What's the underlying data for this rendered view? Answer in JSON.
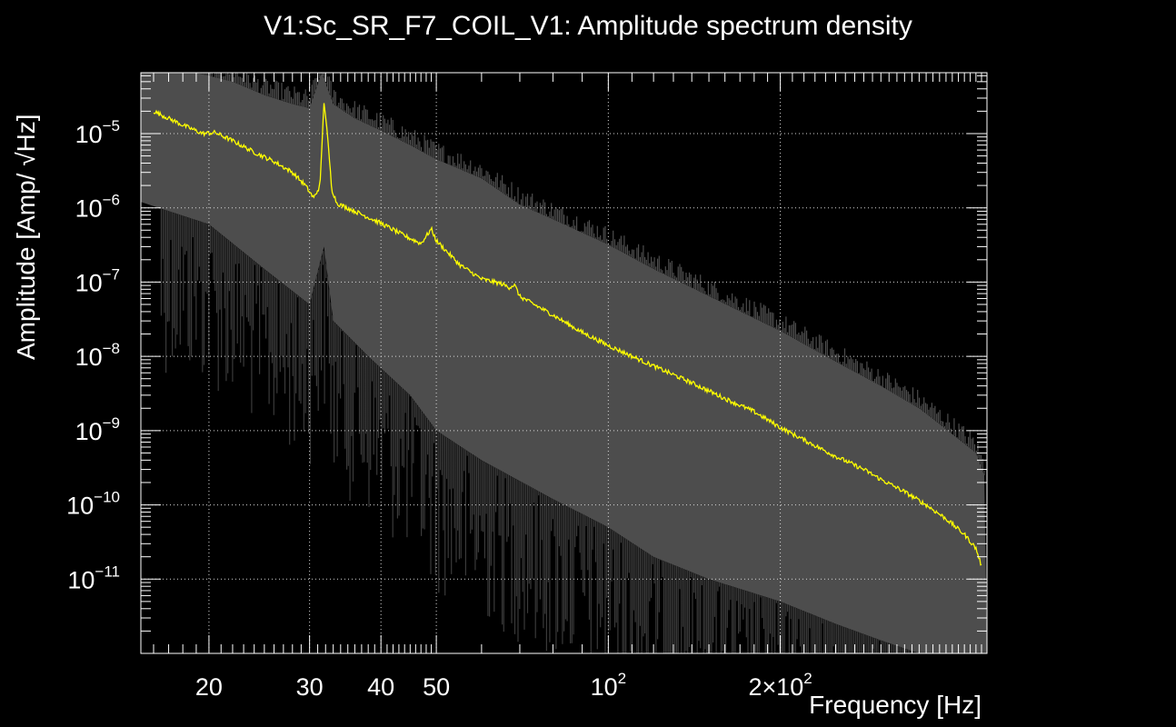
{
  "chart_data": {
    "type": "line",
    "title": "V1:Sc_SR_F7_COIL_V1: Amplitude spectrum density",
    "xlabel": "Frequency [Hz]",
    "ylabel": "Amplitude [Amp/ √Hz]",
    "ylabel_main": "Amplitude [Amp/ ",
    "ylabel_sqrt": "√",
    "ylabel_unit": "Hz]",
    "x_scale": "log",
    "y_scale": "log",
    "xlim": [
      15.2,
      460
    ],
    "ylim": [
      1e-12,
      6.6e-05
    ],
    "grid": true,
    "background": "#000000",
    "colors": {
      "band": "#4d4d4d",
      "band_low": "#3a3a3a",
      "median": "#ffff00",
      "axis": "#ffffff"
    },
    "x_ticks": [
      {
        "value": 20,
        "base": "20",
        "exp": ""
      },
      {
        "value": 30,
        "base": "30",
        "exp": ""
      },
      {
        "value": 40,
        "base": "40",
        "exp": ""
      },
      {
        "value": 50,
        "base": "50",
        "exp": ""
      },
      {
        "value": 100,
        "base": "10",
        "exp": "2"
      },
      {
        "value": 200,
        "base": "2×10",
        "exp": "2"
      }
    ],
    "y_ticks": [
      {
        "value": 1e-05,
        "base": "10",
        "exp": "−5"
      },
      {
        "value": 1e-06,
        "base": "10",
        "exp": "−6"
      },
      {
        "value": 1e-07,
        "base": "10",
        "exp": "−7"
      },
      {
        "value": 1e-08,
        "base": "10",
        "exp": "−8"
      },
      {
        "value": 1e-09,
        "base": "10",
        "exp": "−9"
      },
      {
        "value": 1e-10,
        "base": "10",
        "exp": "−10"
      },
      {
        "value": 1e-11,
        "base": "10",
        "exp": "−11"
      }
    ],
    "series": [
      {
        "kind": "band-upper",
        "points": [
          [
            15.2,
            6.6e-05
          ],
          [
            19,
            6.6e-05
          ],
          [
            22,
            5e-05
          ],
          [
            25,
            3.3e-05
          ],
          [
            28,
            2.5e-05
          ],
          [
            30,
            2.2e-05
          ],
          [
            31.5,
            6.6e-05
          ],
          [
            33,
            2.5e-05
          ],
          [
            36,
            1.6e-05
          ],
          [
            40,
            1.1e-05
          ],
          [
            45,
            7e-06
          ],
          [
            50,
            4.5e-06
          ],
          [
            60,
            2.5e-06
          ],
          [
            70,
            1.1e-06
          ],
          [
            80,
            7e-07
          ],
          [
            100,
            3.2e-07
          ],
          [
            120,
            1.5e-07
          ],
          [
            150,
            6.5e-08
          ],
          [
            200,
            2.2e-08
          ],
          [
            250,
            8.5e-09
          ],
          [
            300,
            4e-09
          ],
          [
            350,
            2e-09
          ],
          [
            400,
            9e-10
          ],
          [
            440,
            5e-10
          ],
          [
            455,
            2.5e-10
          ]
        ]
      },
      {
        "kind": "band-lower",
        "points": [
          [
            15.2,
            1.2e-06
          ],
          [
            20,
            6e-07
          ],
          [
            25,
            1.5e-07
          ],
          [
            30,
            5e-08
          ],
          [
            31.8,
            3e-07
          ],
          [
            33,
            3e-08
          ],
          [
            38,
            1e-08
          ],
          [
            45,
            3e-09
          ],
          [
            50,
            1e-09
          ],
          [
            60,
            4e-10
          ],
          [
            80,
            1.2e-10
          ],
          [
            100,
            5e-11
          ],
          [
            120,
            2e-11
          ],
          [
            150,
            1e-11
          ],
          [
            200,
            5e-12
          ],
          [
            250,
            2.5e-12
          ],
          [
            300,
            1.5e-12
          ],
          [
            350,
            1e-12
          ],
          [
            460,
            1e-12
          ]
        ]
      },
      {
        "kind": "median",
        "points": [
          [
            16,
            2e-05
          ],
          [
            18,
            1.3e-05
          ],
          [
            19.5,
            1e-05
          ],
          [
            20.5,
            1.03e-05
          ],
          [
            22,
            8e-06
          ],
          [
            24,
            5.6e-06
          ],
          [
            26,
            4.2e-06
          ],
          [
            28,
            3e-06
          ],
          [
            29.5,
            2e-06
          ],
          [
            30.5,
            1.35e-06
          ],
          [
            31.3,
            2e-06
          ],
          [
            31.8,
            2.8e-05
          ],
          [
            32.3,
            8e-06
          ],
          [
            32.8,
            1.8e-06
          ],
          [
            33.5,
            1.15e-06
          ],
          [
            36,
            9e-07
          ],
          [
            40,
            6.2e-07
          ],
          [
            44,
            4.2e-07
          ],
          [
            47,
            3.3e-07
          ],
          [
            49,
            5.2e-07
          ],
          [
            50,
            3.6e-07
          ],
          [
            55,
            1.7e-07
          ],
          [
            60,
            1.1e-07
          ],
          [
            65,
            9.5e-08
          ],
          [
            67,
            8.5e-08
          ],
          [
            68.5,
            9.2e-08
          ],
          [
            70,
            6.4e-08
          ],
          [
            80,
            3.6e-08
          ],
          [
            90,
            2.1e-08
          ],
          [
            100,
            1.4e-08
          ],
          [
            120,
            7.4e-09
          ],
          [
            140,
            4.4e-09
          ],
          [
            160,
            2.7e-09
          ],
          [
            180,
            1.8e-09
          ],
          [
            200,
            1.1e-09
          ],
          [
            220,
            7.5e-10
          ],
          [
            250,
            4.5e-10
          ],
          [
            280,
            3e-10
          ],
          [
            300,
            2.2e-10
          ],
          [
            330,
            1.5e-10
          ],
          [
            360,
            1e-10
          ],
          [
            390,
            6.5e-11
          ],
          [
            420,
            4e-11
          ],
          [
            440,
            2.6e-11
          ],
          [
            450,
            1.5e-11
          ]
        ]
      }
    ]
  }
}
